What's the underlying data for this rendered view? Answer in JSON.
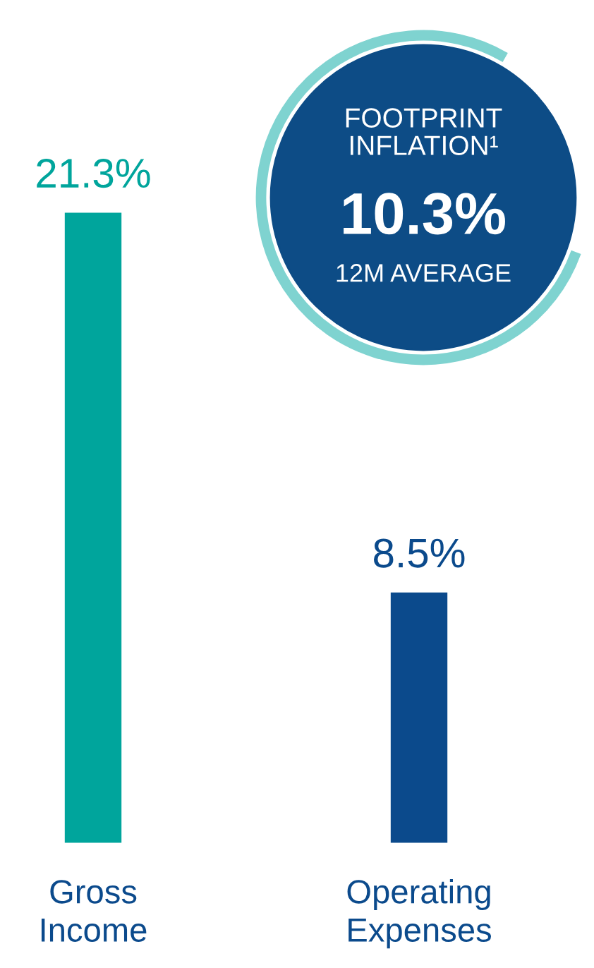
{
  "chart_data": {
    "type": "bar",
    "categories": [
      "Gross\nIncome",
      "Operating\nExpenses"
    ],
    "values": [
      21.3,
      8.5
    ],
    "value_labels": [
      "21.3%",
      "8.5%"
    ],
    "colors": [
      "#00a59c",
      "#0b4a8c"
    ],
    "annotations": [
      "FOOTPRINT\nINFLATION¹",
      "10.3%",
      "12M AVERAGE"
    ]
  }
}
